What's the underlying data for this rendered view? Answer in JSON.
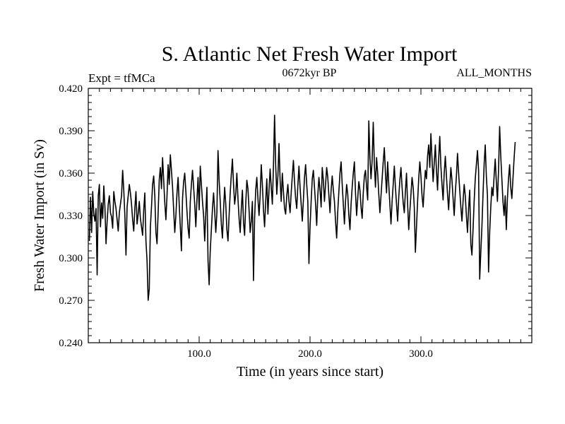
{
  "chart_data": {
    "type": "line",
    "title": "S. Atlantic Net Fresh Water Import",
    "subtitle_left": "Expt = tfMCa",
    "subtitle_center": "0672kyr BP",
    "subtitle_right": "ALL_MONTHS",
    "xlabel": "Time (in years since start)",
    "ylabel": "Fresh Water Import (in Sv)",
    "xlim": [
      0,
      400
    ],
    "ylim": [
      0.24,
      0.42
    ],
    "x_ticks": [
      100,
      200,
      300
    ],
    "x_tick_labels": [
      "100.0",
      "200.0",
      "300.0"
    ],
    "y_ticks": [
      0.24,
      0.27,
      0.3,
      0.33,
      0.36,
      0.39,
      0.42
    ],
    "y_tick_labels": [
      "0.240",
      "0.270",
      "0.300",
      "0.330",
      "0.360",
      "0.390",
      "0.420"
    ],
    "grid": false,
    "series": [
      {
        "x_start": 1,
        "x_step": 1,
        "values": [
          0.312,
          0.343,
          0.318,
          0.347,
          0.331,
          0.326,
          0.335,
          0.288,
          0.344,
          0.352,
          0.322,
          0.339,
          0.328,
          0.351,
          0.336,
          0.31,
          0.326,
          0.338,
          0.344,
          0.332,
          0.329,
          0.321,
          0.347,
          0.34,
          0.335,
          0.327,
          0.319,
          0.332,
          0.338,
          0.344,
          0.362,
          0.348,
          0.33,
          0.302,
          0.336,
          0.344,
          0.352,
          0.346,
          0.338,
          0.327,
          0.319,
          0.335,
          0.347,
          0.324,
          0.331,
          0.34,
          0.328,
          0.322,
          0.316,
          0.334,
          0.346,
          0.312,
          0.298,
          0.27,
          0.278,
          0.322,
          0.336,
          0.352,
          0.358,
          0.344,
          0.318,
          0.31,
          0.332,
          0.355,
          0.364,
          0.349,
          0.371,
          0.355,
          0.339,
          0.327,
          0.344,
          0.366,
          0.352,
          0.373,
          0.362,
          0.35,
          0.334,
          0.318,
          0.33,
          0.346,
          0.357,
          0.338,
          0.322,
          0.305,
          0.342,
          0.354,
          0.36,
          0.347,
          0.333,
          0.321,
          0.314,
          0.34,
          0.352,
          0.362,
          0.35,
          0.338,
          0.322,
          0.341,
          0.357,
          0.334,
          0.365,
          0.352,
          0.34,
          0.33,
          0.312,
          0.332,
          0.35,
          0.298,
          0.281,
          0.305,
          0.32,
          0.335,
          0.346,
          0.333,
          0.318,
          0.332,
          0.376,
          0.355,
          0.34,
          0.324,
          0.314,
          0.334,
          0.35,
          0.338,
          0.32,
          0.312,
          0.33,
          0.346,
          0.359,
          0.37,
          0.352,
          0.338,
          0.345,
          0.36,
          0.342,
          0.328,
          0.318,
          0.335,
          0.348,
          0.325,
          0.316,
          0.338,
          0.355,
          0.349,
          0.334,
          0.318,
          0.326,
          0.34,
          0.284,
          0.328,
          0.348,
          0.357,
          0.342,
          0.33,
          0.344,
          0.366,
          0.352,
          0.334,
          0.322,
          0.34,
          0.356,
          0.331,
          0.348,
          0.363,
          0.35,
          0.338,
          0.365,
          0.401,
          0.366,
          0.345,
          0.358,
          0.381,
          0.355,
          0.34,
          0.36,
          0.347,
          0.335,
          0.331,
          0.344,
          0.352,
          0.34,
          0.332,
          0.346,
          0.358,
          0.369,
          0.354,
          0.342,
          0.335,
          0.351,
          0.365,
          0.35,
          0.338,
          0.326,
          0.341,
          0.357,
          0.366,
          0.352,
          0.34,
          0.296,
          0.322,
          0.34,
          0.356,
          0.362,
          0.35,
          0.338,
          0.323,
          0.344,
          0.357,
          0.348,
          0.336,
          0.364,
          0.355,
          0.34,
          0.352,
          0.364,
          0.357,
          0.344,
          0.332,
          0.348,
          0.358,
          0.348,
          0.34,
          0.326,
          0.314,
          0.333,
          0.347,
          0.36,
          0.368,
          0.352,
          0.338,
          0.324,
          0.34,
          0.352,
          0.345,
          0.33,
          0.32,
          0.338,
          0.35,
          0.36,
          0.368,
          0.346,
          0.33,
          0.342,
          0.354,
          0.348,
          0.336,
          0.328,
          0.346,
          0.358,
          0.362,
          0.35,
          0.341,
          0.397,
          0.371,
          0.356,
          0.369,
          0.396,
          0.366,
          0.35,
          0.371,
          0.36,
          0.345,
          0.332,
          0.344,
          0.356,
          0.368,
          0.378,
          0.36,
          0.346,
          0.368,
          0.352,
          0.338,
          0.324,
          0.34,
          0.352,
          0.365,
          0.35,
          0.338,
          0.326,
          0.343,
          0.355,
          0.364,
          0.35,
          0.339,
          0.332,
          0.347,
          0.36,
          0.338,
          0.32,
          0.333,
          0.345,
          0.357,
          0.35,
          0.336,
          0.304,
          0.322,
          0.34,
          0.356,
          0.368,
          0.358,
          0.344,
          0.336,
          0.35,
          0.362,
          0.356,
          0.372,
          0.38,
          0.364,
          0.388,
          0.37,
          0.354,
          0.367,
          0.38,
          0.362,
          0.348,
          0.37,
          0.386,
          0.365,
          0.352,
          0.341,
          0.36,
          0.372,
          0.358,
          0.345,
          0.334,
          0.35,
          0.364,
          0.355,
          0.342,
          0.33,
          0.346,
          0.358,
          0.374,
          0.36,
          0.348,
          0.336,
          0.326,
          0.34,
          0.352,
          0.344,
          0.33,
          0.318,
          0.335,
          0.348,
          0.31,
          0.302,
          0.32,
          0.34,
          0.356,
          0.366,
          0.376,
          0.362,
          0.285,
          0.304,
          0.322,
          0.345,
          0.366,
          0.38,
          0.358,
          0.344,
          0.29,
          0.318,
          0.336,
          0.35,
          0.344,
          0.358,
          0.37,
          0.354,
          0.34,
          0.362,
          0.393,
          0.372,
          0.356,
          0.34,
          0.33,
          0.344,
          0.32,
          0.342,
          0.356,
          0.366,
          0.35,
          0.342,
          0.356,
          0.37,
          0.382
        ]
      }
    ]
  }
}
